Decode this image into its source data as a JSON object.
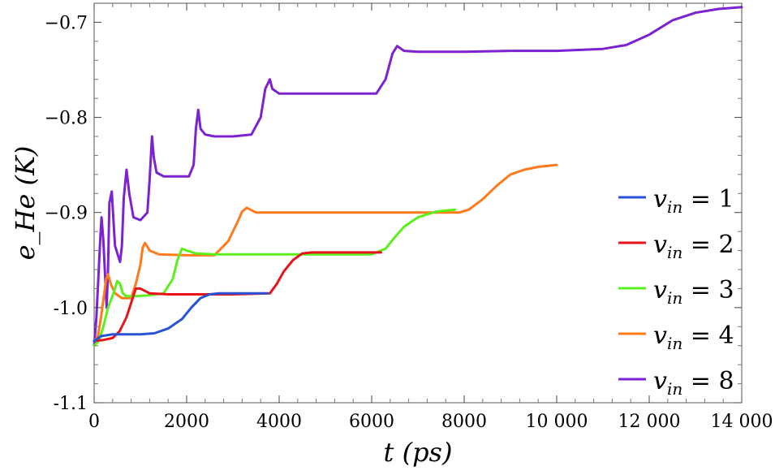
{
  "chart_data": {
    "type": "line",
    "xlabel": "t (ps)",
    "ylabel": "e_He (K)",
    "xlim": [
      0,
      14000
    ],
    "ylim": [
      -1.1,
      -0.68
    ],
    "grid": false,
    "legend_position": "right",
    "x_ticks": [
      {
        "value": 0,
        "label": "0"
      },
      {
        "value": 2000,
        "label": "2000"
      },
      {
        "value": 4000,
        "label": "4000"
      },
      {
        "value": 6000,
        "label": "6000"
      },
      {
        "value": 8000,
        "label": "8000"
      },
      {
        "value": 10000,
        "label": "10 000"
      },
      {
        "value": 12000,
        "label": "12 000"
      },
      {
        "value": 14000,
        "label": "14 000"
      }
    ],
    "y_ticks": [
      {
        "value": -1.1,
        "label": "-1.1"
      },
      {
        "value": -1.0,
        "label": "-1.0"
      },
      {
        "value": -0.9,
        "label": "−0.9"
      },
      {
        "value": -0.8,
        "label": "−0.8"
      },
      {
        "value": -0.7,
        "label": "−0.7"
      }
    ],
    "series": [
      {
        "name": "v_in = 1",
        "legend_sub": "in",
        "legend_value": "1",
        "color": "#2a52d6",
        "x": [
          0,
          150,
          400,
          1000,
          1300,
          1600,
          1900,
          2100,
          2300,
          2500,
          2700,
          3000,
          3300,
          3750
        ],
        "y": [
          -1.035,
          -1.03,
          -1.028,
          -1.028,
          -1.027,
          -1.022,
          -1.012,
          -1.0,
          -0.99,
          -0.986,
          -0.985,
          -0.985,
          -0.985,
          -0.985
        ]
      },
      {
        "name": "v_in = 2",
        "legend_sub": "in",
        "legend_value": "2",
        "color": "#e8131a",
        "x": [
          0,
          200,
          400,
          550,
          700,
          800,
          900,
          1000,
          1200,
          1600,
          2000,
          3000,
          3800,
          3950,
          4100,
          4300,
          4500,
          4700,
          5000,
          5500,
          6200
        ],
        "y": [
          -1.035,
          -1.034,
          -1.032,
          -1.025,
          -1.01,
          -0.995,
          -0.98,
          -0.98,
          -0.985,
          -0.986,
          -0.986,
          -0.986,
          -0.985,
          -0.975,
          -0.962,
          -0.95,
          -0.943,
          -0.942,
          -0.942,
          -0.942,
          -0.942
        ]
      },
      {
        "name": "v_in = 3",
        "legend_sub": "in",
        "legend_value": "3",
        "color": "#5bf01c",
        "x": [
          0,
          100,
          200,
          300,
          380,
          450,
          500,
          560,
          620,
          700,
          900,
          1200,
          1500,
          1700,
          1800,
          1900,
          2000,
          2200,
          2600,
          3500,
          4500,
          5500,
          6000,
          6300,
          6500,
          6700,
          7000,
          7400,
          7800
        ],
        "y": [
          -1.04,
          -1.035,
          -1.02,
          -1.0,
          -0.99,
          -0.98,
          -0.972,
          -0.975,
          -0.985,
          -0.988,
          -0.988,
          -0.987,
          -0.985,
          -0.97,
          -0.95,
          -0.938,
          -0.94,
          -0.943,
          -0.944,
          -0.944,
          -0.944,
          -0.944,
          -0.944,
          -0.938,
          -0.926,
          -0.915,
          -0.905,
          -0.899,
          -0.897
        ]
      },
      {
        "name": "v_in = 4",
        "legend_sub": "in",
        "legend_value": "4",
        "color": "#ff7a1a",
        "x": [
          0,
          80,
          150,
          220,
          260,
          300,
          360,
          450,
          600,
          800,
          900,
          1000,
          1050,
          1100,
          1200,
          1400,
          2000,
          2600,
          2900,
          3100,
          3200,
          3300,
          3500,
          4000,
          5000,
          7000,
          7900,
          8100,
          8400,
          8700,
          9000,
          9300,
          9600,
          10000
        ],
        "y": [
          -1.035,
          -1.03,
          -1.01,
          -0.985,
          -0.97,
          -0.965,
          -0.975,
          -0.985,
          -0.99,
          -0.99,
          -0.975,
          -0.955,
          -0.937,
          -0.932,
          -0.94,
          -0.944,
          -0.945,
          -0.945,
          -0.93,
          -0.91,
          -0.899,
          -0.895,
          -0.9,
          -0.9,
          -0.9,
          -0.9,
          -0.9,
          -0.897,
          -0.886,
          -0.872,
          -0.86,
          -0.855,
          -0.852,
          -0.85
        ]
      },
      {
        "name": "v_in = 8",
        "legend_sub": "in",
        "legend_value": "8",
        "color": "#7c22d1",
        "x": [
          0,
          50,
          100,
          130,
          160,
          200,
          240,
          270,
          300,
          330,
          380,
          450,
          560,
          600,
          640,
          700,
          760,
          850,
          1000,
          1150,
          1200,
          1250,
          1290,
          1350,
          1500,
          1800,
          2050,
          2150,
          2200,
          2250,
          2300,
          2400,
          2600,
          3000,
          3400,
          3600,
          3700,
          3800,
          3850,
          4000,
          4500,
          5500,
          6100,
          6300,
          6450,
          6550,
          6700,
          7000,
          8000,
          9000,
          10000,
          11000,
          11500,
          12000,
          12500,
          13000,
          13500,
          14000
        ],
        "y": [
          -1.04,
          -1.01,
          -0.96,
          -0.93,
          -0.905,
          -0.93,
          -0.97,
          -1.0,
          -0.96,
          -0.89,
          -0.878,
          -0.935,
          -0.952,
          -0.935,
          -0.885,
          -0.855,
          -0.88,
          -0.905,
          -0.908,
          -0.9,
          -0.865,
          -0.82,
          -0.842,
          -0.858,
          -0.862,
          -0.862,
          -0.862,
          -0.85,
          -0.812,
          -0.792,
          -0.812,
          -0.818,
          -0.82,
          -0.82,
          -0.818,
          -0.8,
          -0.77,
          -0.76,
          -0.77,
          -0.775,
          -0.775,
          -0.775,
          -0.775,
          -0.76,
          -0.733,
          -0.725,
          -0.73,
          -0.731,
          -0.731,
          -0.73,
          -0.73,
          -0.728,
          -0.724,
          -0.713,
          -0.698,
          -0.69,
          -0.686,
          -0.684
        ]
      }
    ]
  }
}
